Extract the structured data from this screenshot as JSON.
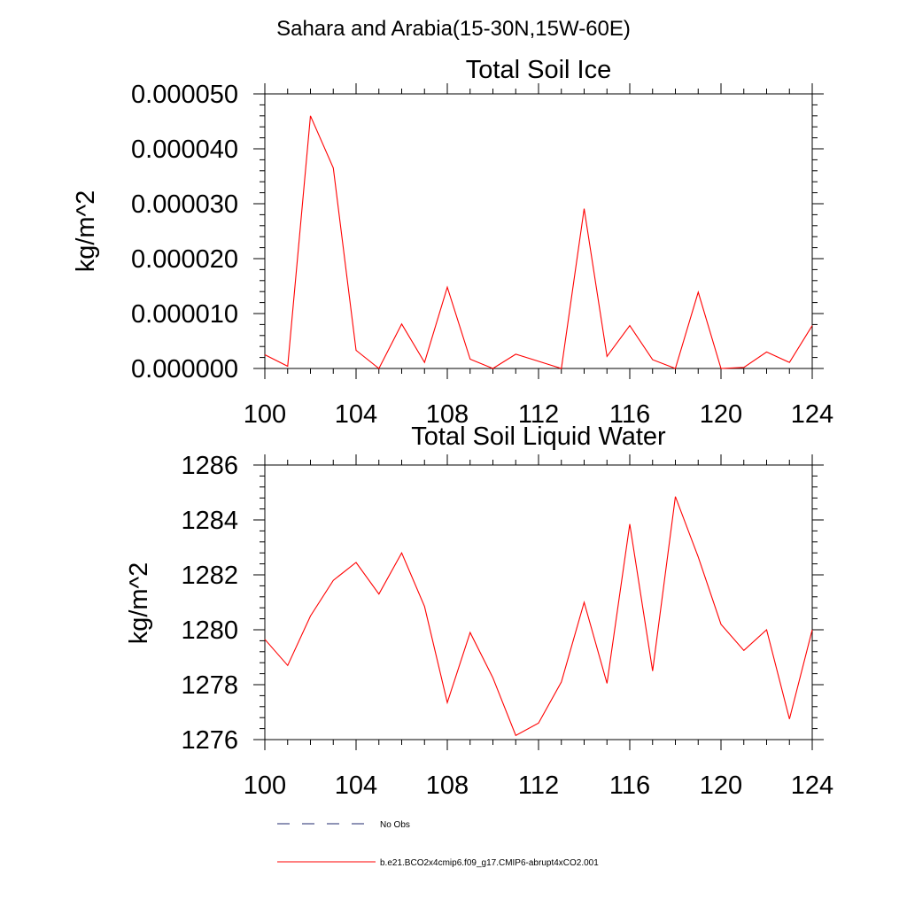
{
  "figure_title": "Sahara and Arabia(15-30N,15W-60E)",
  "chart_data": [
    {
      "type": "line",
      "title": "Total Soil Ice",
      "xlabel": "",
      "ylabel": "kg/m^2",
      "xlim": [
        100,
        124
      ],
      "ylim": [
        0,
        5e-05
      ],
      "x_ticks": [
        100,
        104,
        108,
        112,
        116,
        120,
        124
      ],
      "x_tick_labels": [
        "100",
        "104",
        "108",
        "112",
        "116",
        "120",
        "124"
      ],
      "y_ticks": [
        0,
        1e-05,
        2e-05,
        3e-05,
        4e-05,
        5e-05
      ],
      "y_tick_labels": [
        "0.000000",
        "0.000010",
        "0.000020",
        "0.000030",
        "0.000040",
        "0.000050"
      ],
      "x": [
        100,
        101,
        102,
        103,
        104,
        105,
        106,
        107,
        108,
        109,
        110,
        111,
        112,
        113,
        114,
        115,
        116,
        117,
        118,
        119,
        120,
        121,
        122,
        123,
        124
      ],
      "series": [
        {
          "name": "b.e21.BCO2x4cmip6.f09_g17.CMIP6-abrupt4xCO2.001",
          "color": "#ff0000",
          "values": [
            2.5e-06,
            4e-07,
            4.6e-05,
            3.65e-05,
            3.3e-06,
            0.0,
            8.1e-06,
            1.1e-06,
            1.48e-05,
            1.7e-06,
            0.0,
            2.6e-06,
            1.3e-06,
            0.0,
            2.91e-05,
            2.2e-06,
            7.8e-06,
            1.6e-06,
            0.0,
            1.39e-05,
            0.0,
            2e-07,
            3e-06,
            1.1e-06,
            7.8e-06
          ]
        }
      ],
      "grid": false
    },
    {
      "type": "line",
      "title": "Total Soil Liquid Water",
      "xlabel": "",
      "ylabel": "kg/m^2",
      "xlim": [
        100,
        124
      ],
      "ylim": [
        1276,
        1286
      ],
      "x_ticks": [
        100,
        104,
        108,
        112,
        116,
        120,
        124
      ],
      "x_tick_labels": [
        "100",
        "104",
        "108",
        "112",
        "116",
        "120",
        "124"
      ],
      "y_ticks": [
        1276,
        1278,
        1280,
        1282,
        1284,
        1286
      ],
      "y_tick_labels": [
        "1276",
        "1278",
        "1280",
        "1282",
        "1284",
        "1286"
      ],
      "x": [
        100,
        101,
        102,
        103,
        104,
        105,
        106,
        107,
        108,
        109,
        110,
        111,
        112,
        113,
        114,
        115,
        116,
        117,
        118,
        119,
        120,
        121,
        122,
        123,
        124
      ],
      "series": [
        {
          "name": "b.e21.BCO2x4cmip6.f09_g17.CMIP6-abrupt4xCO2.001",
          "color": "#ff0000",
          "values": [
            1279.65,
            1278.7,
            1280.5,
            1281.8,
            1282.45,
            1281.3,
            1282.8,
            1280.85,
            1277.35,
            1279.9,
            1278.25,
            1276.15,
            1276.6,
            1278.1,
            1281.0,
            1278.05,
            1283.85,
            1278.5,
            1284.85,
            1282.65,
            1280.2,
            1279.25,
            1280.0,
            1276.75,
            1280.0
          ]
        }
      ],
      "grid": false
    }
  ],
  "legend": {
    "placement": "bottom-center",
    "entries": [
      {
        "label": "No Obs",
        "color": "#1f2a6e",
        "dash": "dashed"
      },
      {
        "label": "b.e21.BCO2x4cmip6.f09_g17.CMIP6-abrupt4xCO2.001",
        "color": "#ff0000",
        "dash": "solid"
      }
    ]
  }
}
